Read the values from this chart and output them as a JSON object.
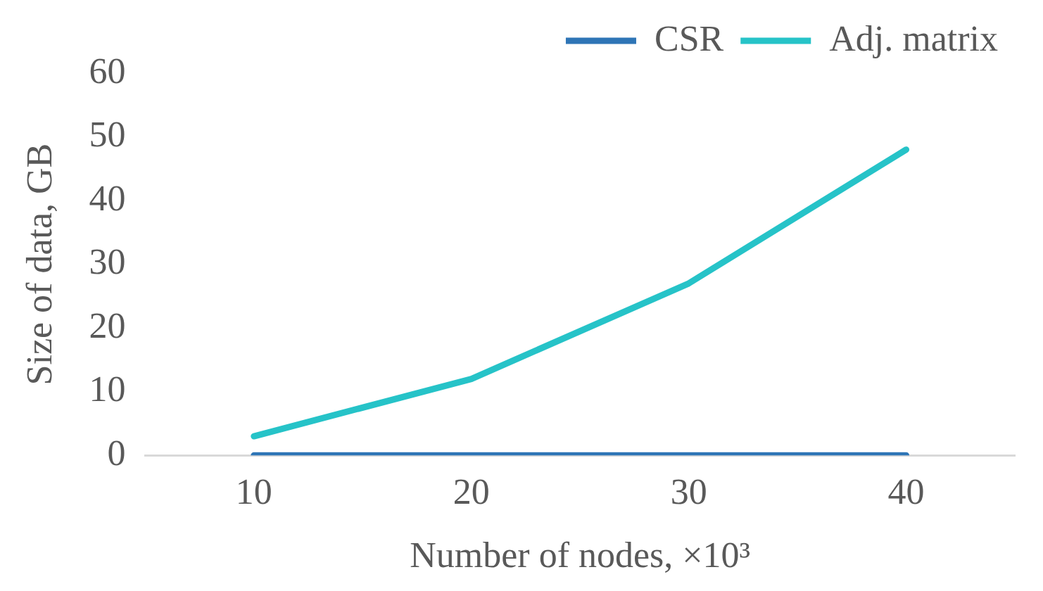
{
  "chart_data": {
    "type": "line",
    "xlabel": "Number of nodes, ×10³",
    "ylabel": "Size of data, GB",
    "categories": [
      "10",
      "20",
      "30",
      "40"
    ],
    "series": [
      {
        "name": "CSR",
        "color": "#2e75b6",
        "values": [
          0,
          0,
          0,
          0
        ]
      },
      {
        "name": "Adj. matrix",
        "color": "#26c3c8",
        "values": [
          3,
          12,
          27,
          48
        ]
      }
    ],
    "ylim": [
      0,
      60
    ],
    "yticks": [
      0,
      10,
      20,
      30,
      40,
      50,
      60
    ],
    "grid": false,
    "legend": "top right",
    "marker": "none",
    "line_style": "solid"
  }
}
